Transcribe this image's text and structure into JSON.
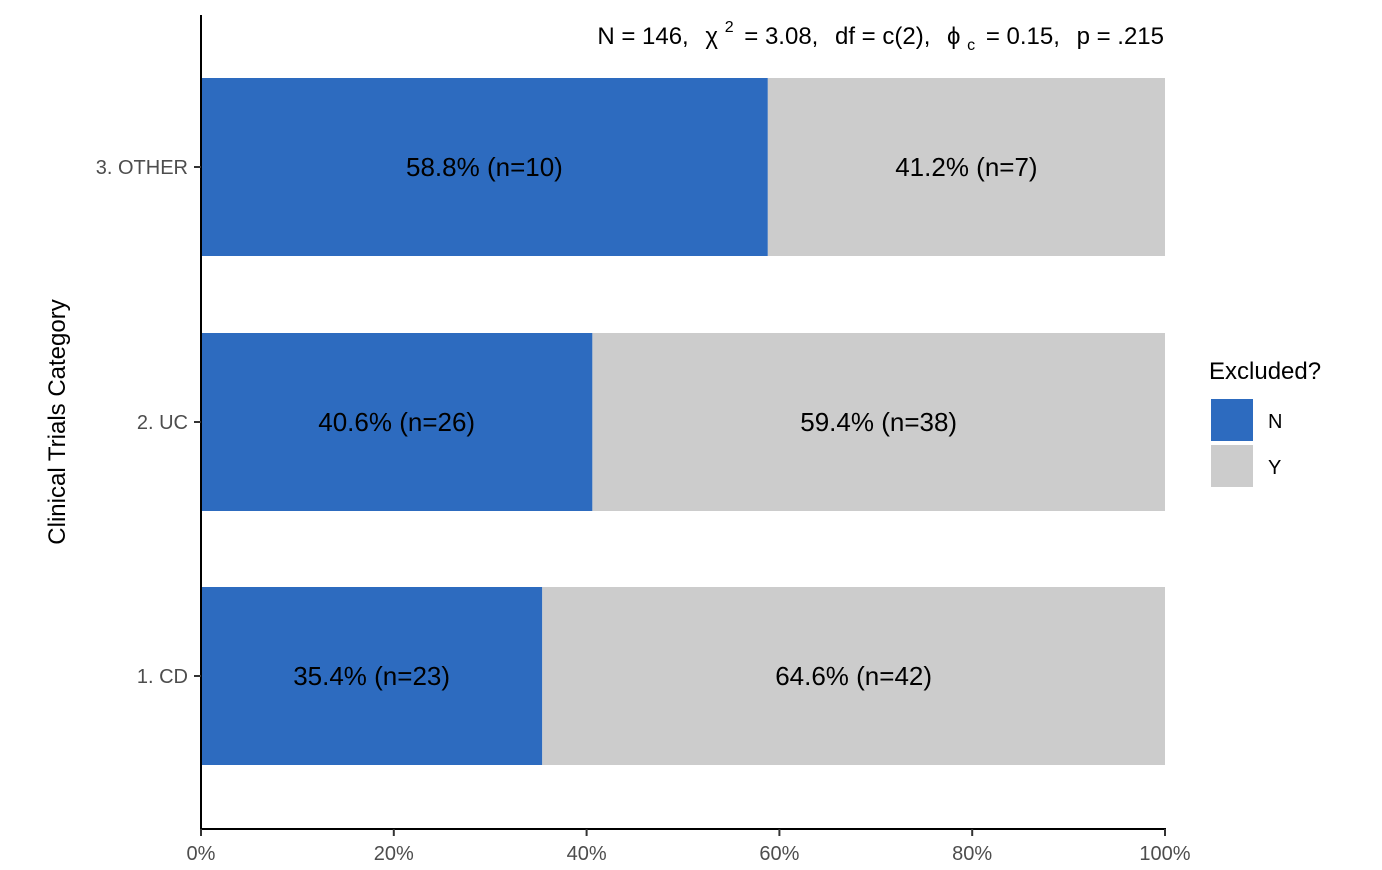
{
  "chart_data": {
    "type": "bar",
    "orientation": "horizontal",
    "stacked": true,
    "subtitle": "N = 146,  χ² = 3.08,  df = c(2),  ϕc = 0.15,  p = .215",
    "subtitle_parts": {
      "n": "N = 146,",
      "chi_symbol": "χ",
      "chi_exp": "2",
      "chi_value": "= 3.08,",
      "df": "df = c(2),",
      "phi_symbol": "ϕ",
      "phi_sub": "c",
      "phi_value": "= 0.15,",
      "p": "p = .215"
    },
    "ylabel": "Clinical Trials Category",
    "xlabel": "",
    "xlim": [
      0,
      100
    ],
    "x_ticks": [
      0,
      20,
      40,
      60,
      80,
      100
    ],
    "x_tick_labels": [
      "0%",
      "20%",
      "40%",
      "60%",
      "80%",
      "100%"
    ],
    "categories": [
      "1. CD",
      "2. UC",
      "3. OTHER"
    ],
    "series": [
      {
        "name": "N",
        "color": "#2d6bbf",
        "values": [
          35.4,
          40.6,
          58.8
        ],
        "labels": [
          "35.4% (n=23)",
          "40.6% (n=26)",
          "58.8% (n=10)"
        ]
      },
      {
        "name": "Y",
        "color": "#cccccc",
        "values": [
          64.6,
          59.4,
          41.2
        ],
        "labels": [
          "64.6% (n=42)",
          "59.4% (n=38)",
          "41.2% (n=7)"
        ]
      }
    ],
    "legend": {
      "title": "Excluded?",
      "entries": [
        "N",
        "Y"
      ],
      "position": "right"
    },
    "grid": false
  }
}
